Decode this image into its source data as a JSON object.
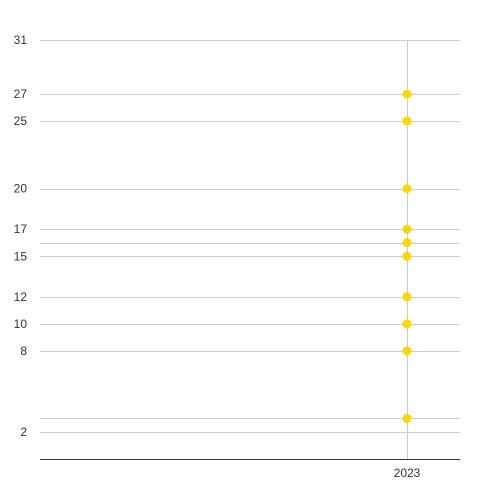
{
  "colors": {
    "point": "#FFD700",
    "grid": "#cccccc",
    "axis": "#333333",
    "text": "#333333"
  },
  "chart_data": {
    "type": "scatter",
    "title": "",
    "xlabel": "",
    "ylabel": "",
    "grid": true,
    "legend": "none",
    "x_categories": [
      "2023"
    ],
    "y_tick_labels": [
      "2",
      "8",
      "10",
      "12",
      "15",
      "17",
      "20",
      "25",
      "27",
      "31"
    ],
    "ylim": [
      0,
      31
    ],
    "series": [
      {
        "points": [
          {
            "x": "2023",
            "y": 27
          },
          {
            "x": "2023",
            "y": 25
          },
          {
            "x": "2023",
            "y": 20
          },
          {
            "x": "2023",
            "y": 17
          },
          {
            "x": "2023",
            "y": 16
          },
          {
            "x": "2023",
            "y": 15
          },
          {
            "x": "2023",
            "y": 12
          },
          {
            "x": "2023",
            "y": 10
          },
          {
            "x": "2023",
            "y": 8
          },
          {
            "x": "2023",
            "y": 3
          }
        ]
      }
    ]
  }
}
